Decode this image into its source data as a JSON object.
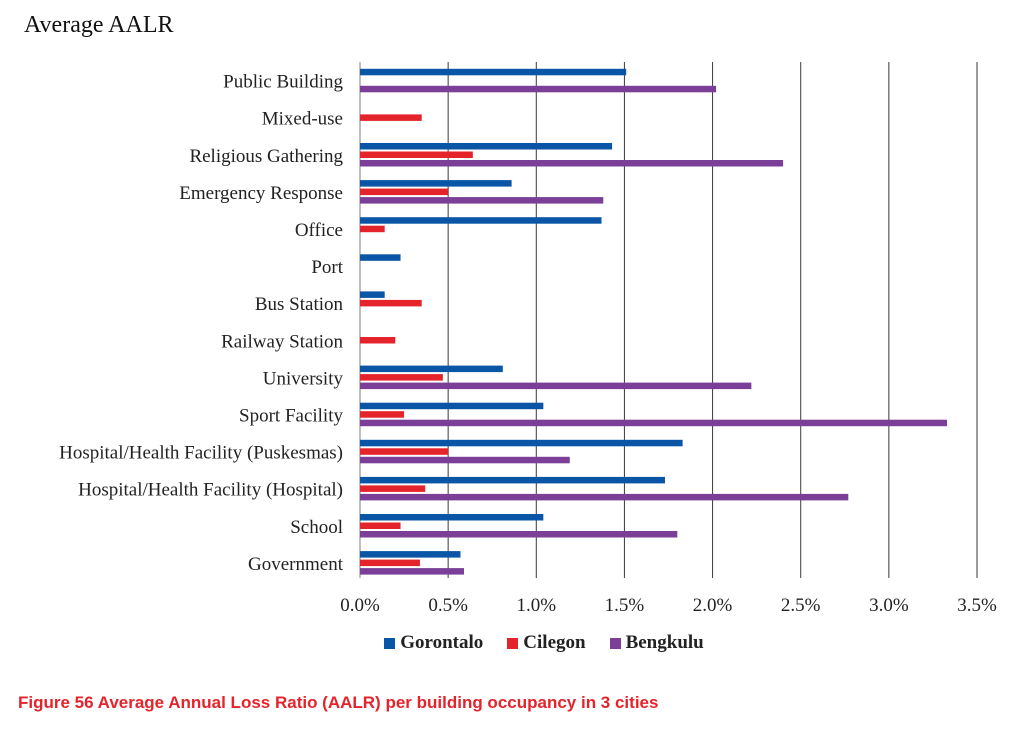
{
  "chart_data": {
    "type": "bar",
    "orientation": "horizontal",
    "title": "Average AALR",
    "xlabel": "",
    "ylabel": "",
    "xlim": [
      0,
      3.5
    ],
    "x_ticks": [
      "0.0%",
      "0.5%",
      "1.0%",
      "1.5%",
      "2.0%",
      "2.5%",
      "3.0%",
      "3.5%"
    ],
    "grid": "vertical",
    "legend_position": "bottom",
    "categories": [
      "Public Building",
      "Mixed-use",
      "Religious Gathering",
      "Emergency Response",
      "Office",
      "Port",
      "Bus Station",
      "Railway Station",
      "University",
      "Sport Facility",
      "Hospital/Health Facility (Puskesmas)",
      "Hospital/Health Facility (Hospital)",
      "School",
      "Government"
    ],
    "series": [
      {
        "name": "Gorontalo",
        "color": "#0a55a5",
        "values": [
          1.51,
          null,
          1.43,
          0.86,
          1.37,
          0.23,
          0.14,
          null,
          0.81,
          1.04,
          1.83,
          1.73,
          1.04,
          0.57
        ]
      },
      {
        "name": "Cilegon",
        "color": "#e5232b",
        "values": [
          null,
          0.35,
          0.64,
          0.5,
          0.14,
          null,
          0.35,
          0.2,
          0.47,
          0.25,
          0.5,
          0.37,
          0.23,
          0.34
        ]
      },
      {
        "name": "Bengkulu",
        "color": "#7b3f98",
        "values": [
          2.02,
          null,
          2.4,
          1.38,
          null,
          null,
          null,
          null,
          2.22,
          3.33,
          1.19,
          2.77,
          1.8,
          0.59
        ]
      }
    ]
  },
  "caption": {
    "text": "Figure 56 Average Annual Loss Ratio (AALR) per building occupancy in 3 cities",
    "color": "#e5232b"
  }
}
